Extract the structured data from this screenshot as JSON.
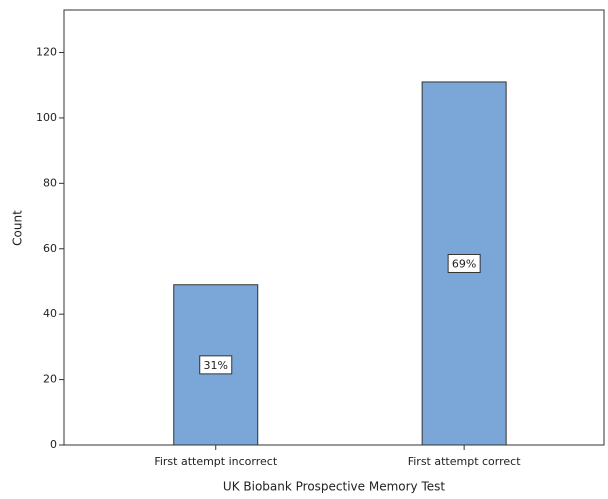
{
  "chart_data": {
    "type": "bar",
    "categories": [
      "First attempt incorrect",
      "First attempt correct"
    ],
    "values": [
      49,
      111
    ],
    "percentages": {
      "values": [
        31,
        69
      ],
      "value_labels": [
        "31%",
        "69%"
      ]
    },
    "color": "#7ba7d8",
    "ylabel": "Count",
    "xlabel": "UK Biobank Prospective Memory Test",
    "ylim": [
      0,
      133
    ],
    "yticks": [
      0,
      20,
      40,
      60,
      80,
      100,
      120
    ]
  }
}
